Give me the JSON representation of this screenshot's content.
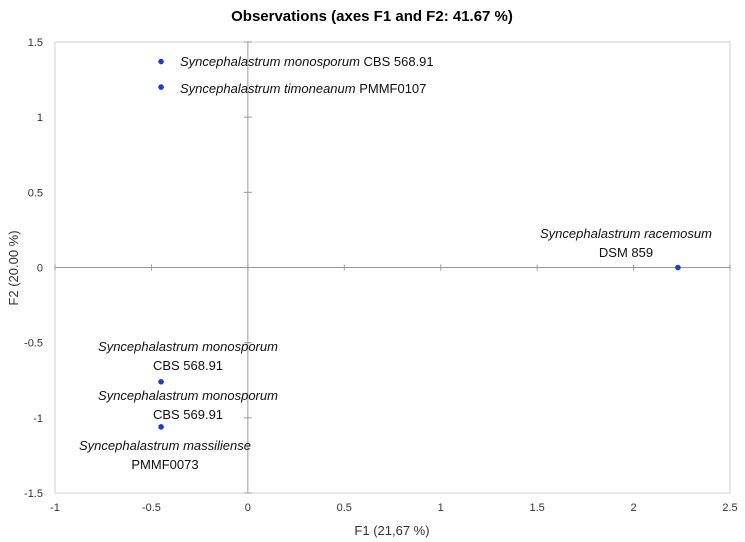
{
  "chart_data": {
    "type": "scatter",
    "title": "Observations (axes F1 and F2: 41.67 %)",
    "xlabel": "F1 (21,67 %)",
    "ylabel": "F2 (20.00 %)",
    "xlim": [
      -1,
      2.5
    ],
    "ylim": [
      -1.5,
      1.5
    ],
    "xticks": [
      -1,
      -0.5,
      0,
      0.5,
      1,
      1.5,
      2,
      2.5
    ],
    "yticks": [
      -1.5,
      -1,
      -0.5,
      0,
      0.5,
      1,
      1.5
    ],
    "xtick_labels": [
      "-1",
      "-0.5",
      "0",
      "0.5",
      "1",
      "1.5",
      "2",
      "2.5"
    ],
    "ytick_labels": [
      "-1.5",
      "-1",
      "-0.5",
      "0",
      "0.5",
      "1",
      "1.5"
    ],
    "grid": false,
    "point_color": "#1f3fbf",
    "points": [
      {
        "x": -0.45,
        "y": 1.37
      },
      {
        "x": -0.45,
        "y": 1.2
      },
      {
        "x": 2.23,
        "y": 0.0
      },
      {
        "x": -0.45,
        "y": -0.76
      },
      {
        "x": -0.45,
        "y": -1.06
      }
    ],
    "annotations": [
      {
        "lines": [
          {
            "italic": "Syncephalastrum monosporum",
            "plain": " CBS 568.91"
          }
        ]
      },
      {
        "lines": [
          {
            "italic": "Syncephalastrum timoneanum",
            "plain": " PMMF0107"
          }
        ]
      },
      {
        "lines": [
          {
            "italic": "Syncephalastrum racemosum",
            "plain": ""
          },
          {
            "italic": "",
            "plain": "DSM 859"
          }
        ]
      },
      {
        "lines": [
          {
            "italic": "Syncephalastrum monosporum",
            "plain": ""
          },
          {
            "italic": "",
            "plain": "CBS 568.91"
          }
        ]
      },
      {
        "lines": [
          {
            "italic": "Syncephalastrum monosporum",
            "plain": ""
          },
          {
            "italic": "",
            "plain": "CBS 569.91"
          }
        ]
      },
      {
        "lines": [
          {
            "italic": "Syncephalastrum massiliense",
            "plain": ""
          },
          {
            "italic": "",
            "plain": "PMMF0073"
          }
        ]
      }
    ]
  }
}
